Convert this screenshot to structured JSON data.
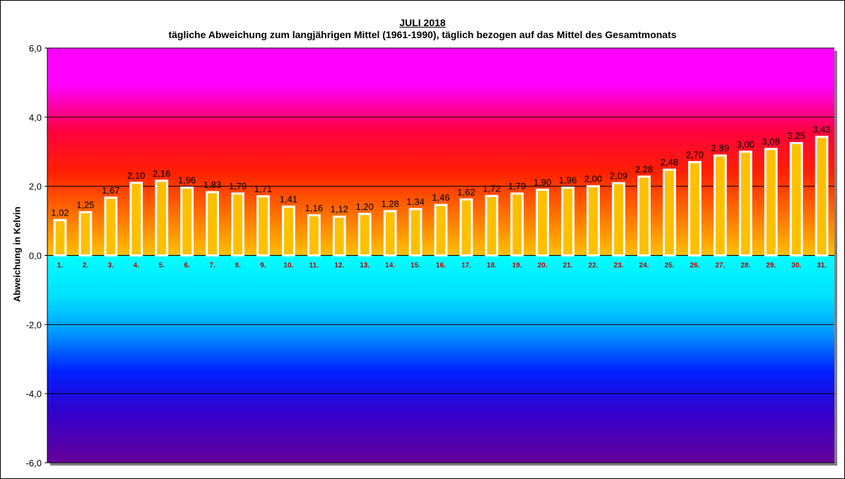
{
  "chart_data": {
    "type": "bar",
    "title": "JULI 2018",
    "subtitle": "tägliche Abweichung zum langjährigen Mittel (1961-1990), täglich bezogen auf das Mittel des Gesamtmonats",
    "xlabel": "",
    "ylabel": "Abweichung in Kelvin",
    "ylim": [
      -6,
      6
    ],
    "yticks": [
      6,
      4,
      2,
      0,
      -2,
      -4,
      -6
    ],
    "ytick_labels": [
      "6,0",
      "4,0",
      "2,0",
      "0,0",
      "-2,0",
      "-4,0",
      "-6,0"
    ],
    "grid": true,
    "categories": [
      "1.",
      "2.",
      "3.",
      "4.",
      "5.",
      "6.",
      "7.",
      "8.",
      "9.",
      "10.",
      "11.",
      "12.",
      "13.",
      "14.",
      "15.",
      "16.",
      "17.",
      "18.",
      "19.",
      "20.",
      "21.",
      "22.",
      "23.",
      "24.",
      "25.",
      "26.",
      "27.",
      "28.",
      "29.",
      "30.",
      "31."
    ],
    "values": [
      1.02,
      1.25,
      1.67,
      2.1,
      2.16,
      1.96,
      1.83,
      1.79,
      1.71,
      1.41,
      1.16,
      1.12,
      1.2,
      1.28,
      1.34,
      1.46,
      1.62,
      1.72,
      1.79,
      1.9,
      1.96,
      2.0,
      2.09,
      2.28,
      2.48,
      2.7,
      2.89,
      3.0,
      3.08,
      3.25,
      3.43
    ],
    "value_labels": [
      "1,02",
      "1,25",
      "1,67",
      "2,10",
      "2,16",
      "1,96",
      "1,83",
      "1,79",
      "1,71",
      "1,41",
      "1,16",
      "1,12",
      "1,20",
      "1,28",
      "1,34",
      "1,46",
      "1,62",
      "1,72",
      "1,79",
      "1,90",
      "1,96",
      "2,00",
      "2,09",
      "2,28",
      "2,48",
      "2,70",
      "2,89",
      "3,00",
      "3,08",
      "3,25",
      "3,43"
    ],
    "colors": {
      "bar_fill": "#ffc000",
      "bar_border": "#ffffff",
      "category_labels": "#c00000",
      "background_top": "#ff00ff",
      "background_warm": "#ff2000",
      "background_zero": "#ffc000",
      "background_cool": "#00ffff",
      "background_bottom": "#660099"
    }
  }
}
